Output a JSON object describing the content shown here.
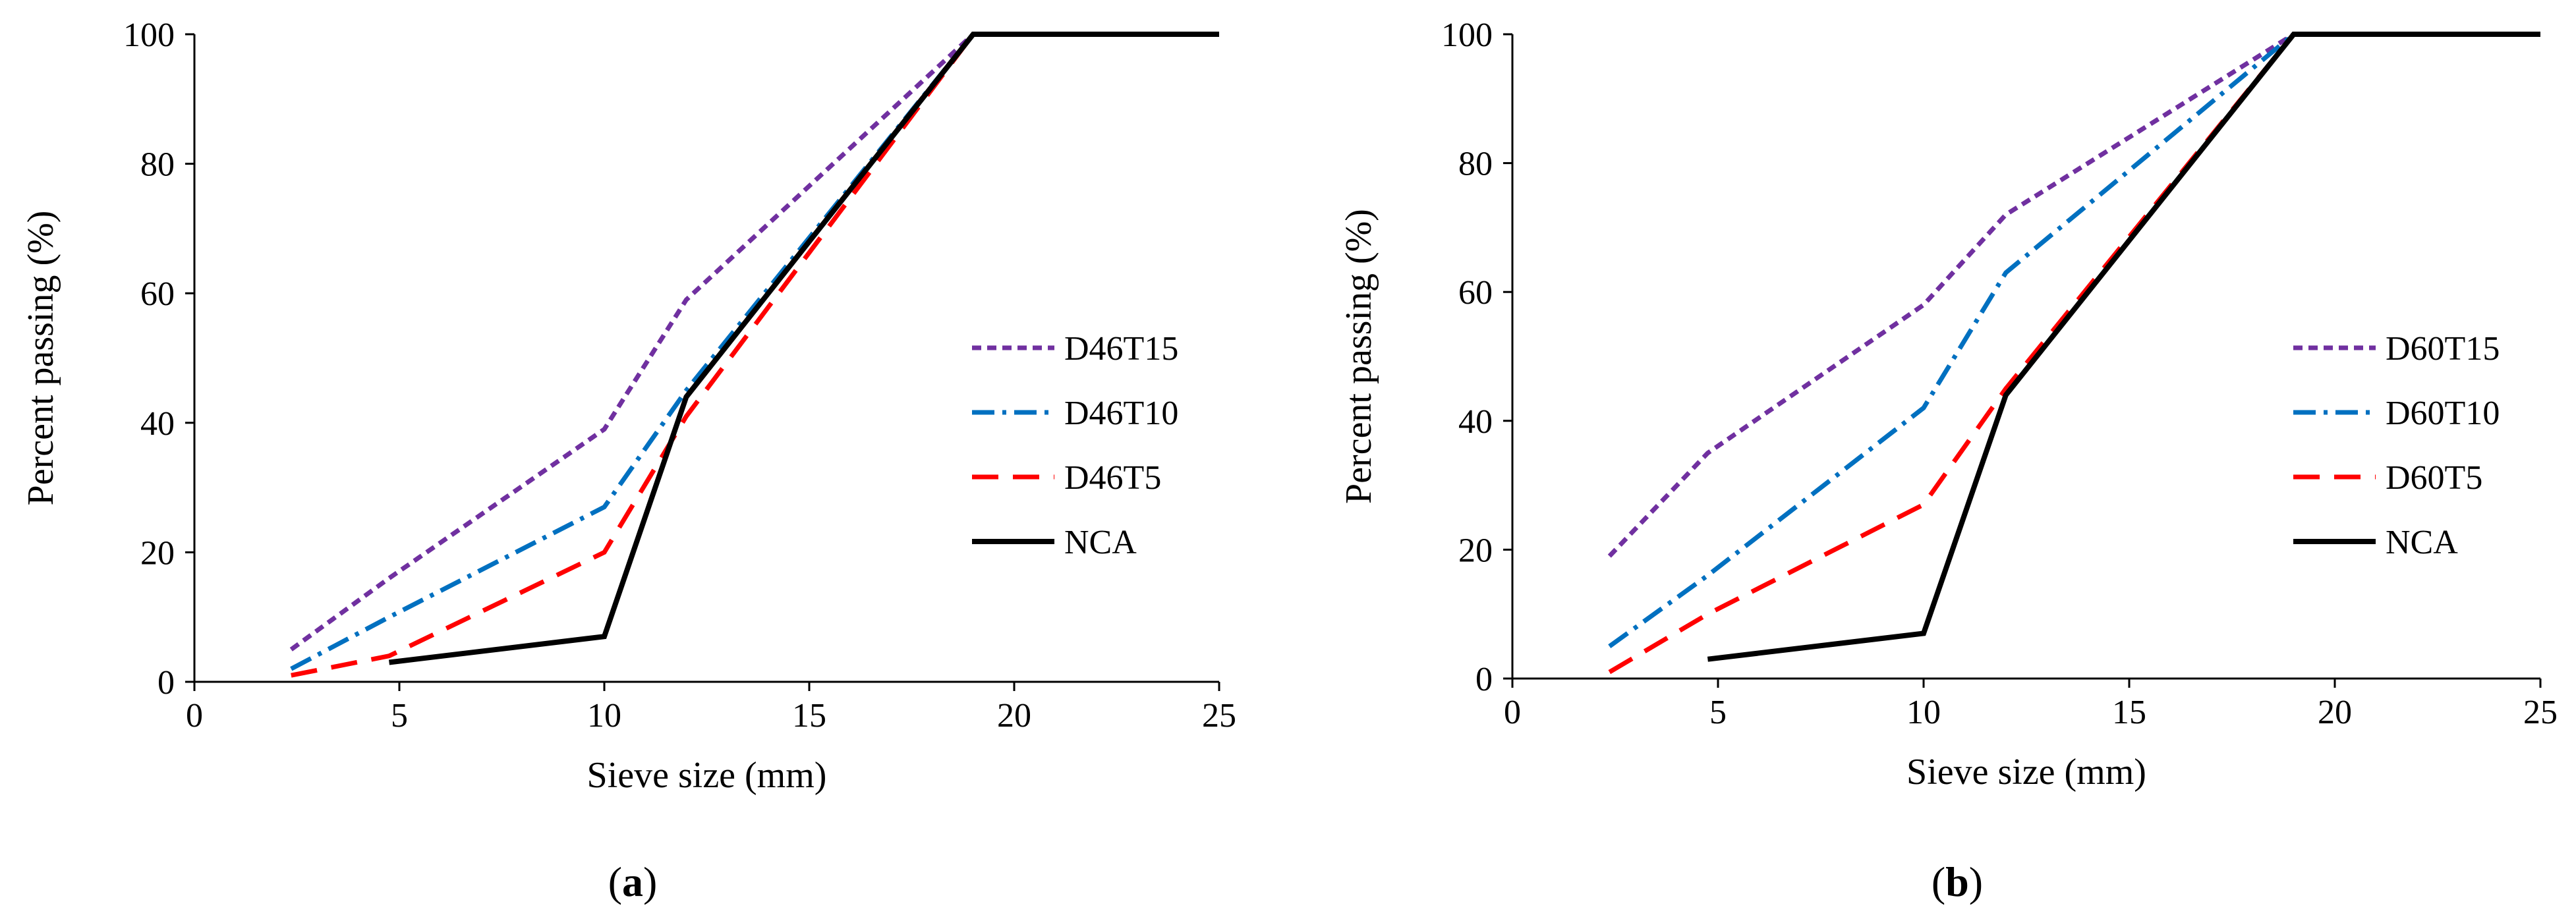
{
  "chart_data": [
    {
      "type": "line",
      "panel_label": "a",
      "xlabel": "Sieve size (mm)",
      "ylabel": "Percent passing (%)",
      "xlim": [
        0,
        25
      ],
      "ylim": [
        0,
        100
      ],
      "xticks": [
        0,
        5,
        10,
        15,
        20,
        25
      ],
      "yticks": [
        0,
        20,
        40,
        60,
        80,
        100
      ],
      "grid": false,
      "legend_position": "right",
      "series": [
        {
          "name": "D46T15",
          "color": "#7030A0",
          "dash": "dotted",
          "points": [
            [
              2.36,
              5
            ],
            [
              4.75,
              16
            ],
            [
              10,
              39
            ],
            [
              12,
              59
            ],
            [
              19,
              100
            ],
            [
              25,
              100
            ]
          ]
        },
        {
          "name": "D46T10",
          "color": "#0070C0",
          "dash": "dash-dot",
          "points": [
            [
              2.36,
              2
            ],
            [
              4.75,
              10
            ],
            [
              10,
              27
            ],
            [
              12,
              45
            ],
            [
              19,
              100
            ],
            [
              25,
              100
            ]
          ]
        },
        {
          "name": "D46T5",
          "color": "#FF0000",
          "dash": "dashed",
          "points": [
            [
              2.36,
              1
            ],
            [
              4.75,
              4
            ],
            [
              10,
              20
            ],
            [
              12,
              41
            ],
            [
              19,
              100
            ],
            [
              25,
              100
            ]
          ]
        },
        {
          "name": "NCA",
          "color": "#000000",
          "dash": "solid",
          "points": [
            [
              4.75,
              3
            ],
            [
              10,
              7
            ],
            [
              12,
              44
            ],
            [
              19,
              100
            ],
            [
              25,
              100
            ]
          ]
        }
      ]
    },
    {
      "type": "line",
      "panel_label": "b",
      "xlabel": "Sieve size (mm)",
      "ylabel": "Percent passing (%)",
      "xlim": [
        0,
        25
      ],
      "ylim": [
        0,
        100
      ],
      "xticks": [
        0,
        5,
        10,
        15,
        20,
        25
      ],
      "yticks": [
        0,
        20,
        40,
        60,
        80,
        100
      ],
      "grid": false,
      "legend_position": "right",
      "series": [
        {
          "name": "D60T15",
          "color": "#7030A0",
          "dash": "dotted",
          "points": [
            [
              2.36,
              19
            ],
            [
              4.75,
              35
            ],
            [
              10,
              58
            ],
            [
              12,
              72
            ],
            [
              19,
              100
            ],
            [
              25,
              100
            ]
          ]
        },
        {
          "name": "D60T10",
          "color": "#0070C0",
          "dash": "dash-dot",
          "points": [
            [
              2.36,
              5
            ],
            [
              4.75,
              16
            ],
            [
              10,
              42
            ],
            [
              12,
              63
            ],
            [
              19,
              100
            ],
            [
              25,
              100
            ]
          ]
        },
        {
          "name": "D60T5",
          "color": "#FF0000",
          "dash": "dashed",
          "points": [
            [
              2.36,
              1
            ],
            [
              4.75,
              10
            ],
            [
              10,
              27
            ],
            [
              12,
              45
            ],
            [
              19,
              100
            ],
            [
              25,
              100
            ]
          ]
        },
        {
          "name": "NCA",
          "color": "#000000",
          "dash": "solid",
          "points": [
            [
              4.75,
              3
            ],
            [
              10,
              7
            ],
            [
              12,
              44
            ],
            [
              19,
              100
            ],
            [
              25,
              100
            ]
          ]
        }
      ]
    }
  ]
}
